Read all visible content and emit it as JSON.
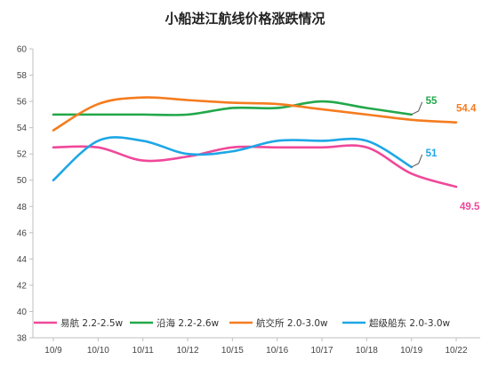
{
  "chart_data": {
    "type": "line",
    "title": "小船进江航线价格涨跌情况",
    "xlabel": "",
    "ylabel": "",
    "categories": [
      "10/9",
      "10/10",
      "10/11",
      "10/12",
      "10/15",
      "10/16",
      "10/17",
      "10/18",
      "10/19",
      "10/22"
    ],
    "ylim": [
      38,
      60
    ],
    "yticks": [
      38,
      40,
      42,
      44,
      46,
      48,
      50,
      52,
      54,
      56,
      58,
      60
    ],
    "grid": false,
    "legend_position": "bottom-inside",
    "series": [
      {
        "name": "易航 2.2-2.5w",
        "color": "#f0489a",
        "values": [
          52.5,
          52.5,
          51.5,
          51.8,
          52.5,
          52.5,
          52.5,
          52.5,
          50.5,
          49.5
        ],
        "end_label": "49.5"
      },
      {
        "name": "沿海 2.2-2.6w",
        "color": "#22a84a",
        "values": [
          55,
          55,
          55,
          55,
          55.5,
          55.5,
          56,
          55.5,
          55,
          null
        ],
        "end_label": "55"
      },
      {
        "name": "航交所 2.0-3.0w",
        "color": "#f57c1f",
        "values": [
          53.8,
          55.8,
          56.3,
          56.1,
          55.9,
          55.8,
          55.4,
          55.0,
          54.6,
          54.4
        ],
        "end_label": "54.4"
      },
      {
        "name": "超级船东 2.0-3.0w",
        "color": "#1ea7e6",
        "values": [
          50,
          53,
          53,
          52,
          52.2,
          53,
          53,
          53,
          51,
          null
        ],
        "end_label": "51"
      }
    ]
  }
}
